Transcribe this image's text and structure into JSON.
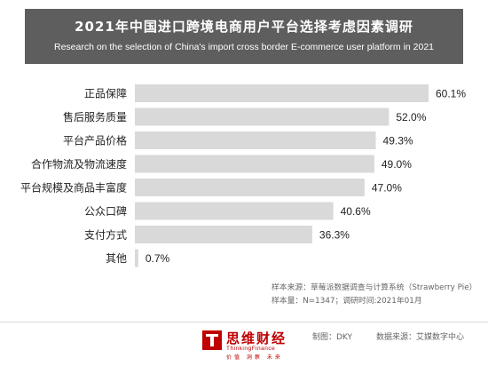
{
  "header": {
    "title": "2021年中国进口跨境电商用户平台选择考虑因素调研",
    "subtitle": "Research on the selection of China's import cross border E-commerce user platform in 2021"
  },
  "chart_data": {
    "type": "bar",
    "orientation": "horizontal",
    "categories": [
      "正品保障",
      "售后服务质量",
      "平台产品价格",
      "合作物流及物流速度",
      "平台规模及商品丰富度",
      "公众口碑",
      "支付方式",
      "其他"
    ],
    "values": [
      60.1,
      52.0,
      49.3,
      49.0,
      47.0,
      40.6,
      36.3,
      0.7
    ],
    "value_labels": [
      "60.1%",
      "52.0%",
      "49.3%",
      "49.0%",
      "47.0%",
      "40.6%",
      "36.3%",
      "0.7%"
    ],
    "unit": "%",
    "xlim": [
      0,
      60.1
    ],
    "grid": false,
    "bar_color": "#d9d9d9"
  },
  "notes": {
    "source_line": "样本来源：草莓派数据调查与计算系统（Strawberry Pie）",
    "sample_line": "样本量：N=1347；调研时间:2021年01月"
  },
  "footer": {
    "brand_cn": "思维财经",
    "brand_en": "ThinkingFinance",
    "brand_sub": "价值 洞察 未来",
    "maker": "制图：DKY",
    "data_source": "数据来源：艾媒数字中心",
    "brand_color": "#c00000"
  }
}
